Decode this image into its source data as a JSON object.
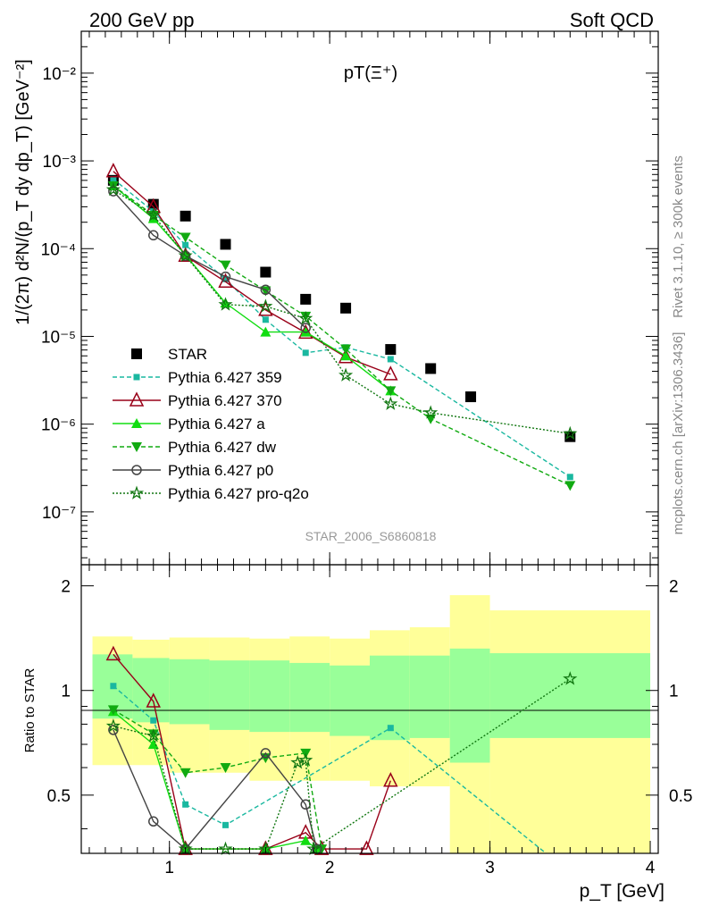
{
  "header": {
    "left": "200 GeV pp",
    "right": "Soft QCD"
  },
  "side": {
    "rivet": "Rivet 3.1.10, ≥ 300k events",
    "mcplots": "mcplots.cern.ch [arXiv:1306.3436]"
  },
  "colors": {
    "star": "#000000",
    "p359": "#1ab8a0",
    "p370": "#990018",
    "a": "#11dd11",
    "dw": "#11aa11",
    "p0": "#444444",
    "proq2o": "#117711",
    "band_inner": "#99ff99",
    "band_outer": "#ffff99"
  },
  "chart_data": [
    {
      "type": "scatter",
      "title": "pT(Ξ⁺)",
      "ylabel": "1/(2π) d²N/(p_T dy dp_T) [GeV⁻²]",
      "xlabel": "p_T [GeV]",
      "watermark": "STAR_2006_S6860818",
      "log_y": true,
      "xlim": [
        0.45,
        4.05
      ],
      "ylim": [
        2.5e-08,
        0.03
      ],
      "x_ticks": [
        "1",
        "2",
        "3",
        "4"
      ],
      "y_ticks": [
        "10⁻⁷",
        "10⁻⁶",
        "10⁻⁵",
        "10⁻⁴",
        "10⁻³",
        "10⁻²"
      ],
      "series": [
        {
          "key": "star",
          "name": "STAR",
          "marker": "square",
          "x": [
            0.65,
            0.9,
            1.1,
            1.35,
            1.6,
            1.85,
            2.1,
            2.38,
            2.63,
            2.88,
            3.5
          ],
          "y": [
            0.0006,
            0.00032,
            0.000235,
            0.000112,
            5.4e-05,
            2.65e-05,
            2.1e-05,
            7.1e-06,
            4.3e-06,
            2.05e-06,
            7.2e-07
          ]
        },
        {
          "key": "p359",
          "name": "Pythia 6.427 359",
          "marker": "smallsquare",
          "dash": "5,3",
          "x": [
            0.65,
            0.9,
            1.1,
            1.35,
            1.6,
            1.85,
            2.1,
            2.38,
            3.5
          ],
          "y": [
            0.00062,
            0.000265,
            0.00011,
            4.5e-05,
            1.55e-05,
            6.5e-06,
            7.5e-06,
            5.5e-06,
            2.5e-07
          ]
        },
        {
          "key": "p370",
          "name": "Pythia 6.427 370",
          "marker": "triangle-open",
          "dash": "",
          "x": [
            0.65,
            0.9,
            1.1,
            1.35,
            1.6,
            1.85,
            2.1,
            2.38
          ],
          "y": [
            0.00076,
            0.0003,
            8.3e-05,
            4.2e-05,
            2e-05,
            1.1e-05,
            5.8e-06,
            3.7e-06
          ]
        },
        {
          "key": "a",
          "name": "Pythia 6.427 a",
          "marker": "triangle-up",
          "dash": "",
          "x": [
            0.65,
            0.9,
            1.1,
            1.35,
            1.6,
            1.85,
            2.1,
            2.38
          ],
          "y": [
            0.00052,
            0.00022,
            8.5e-05,
            2.4e-05,
            1.12e-05,
            1.12e-05,
            6e-06,
            2.4e-06
          ]
        },
        {
          "key": "dw",
          "name": "Pythia 6.427 dw",
          "marker": "triangle-down",
          "dash": "5,3",
          "x": [
            0.65,
            0.9,
            1.1,
            1.35,
            1.6,
            1.85,
            2.1,
            2.38,
            2.63,
            3.5
          ],
          "y": [
            0.00052,
            0.00024,
            0.000135,
            6.5e-05,
            3.3e-05,
            1.7e-05,
            7.2e-06,
            2.4e-06,
            1.15e-06,
            2e-07
          ]
        },
        {
          "key": "p0",
          "name": "Pythia 6.427 p0",
          "marker": "circle-open",
          "dash": "",
          "x": [
            0.65,
            0.9,
            1.1,
            1.35,
            1.6,
            1.85
          ],
          "y": [
            0.00045,
            0.000142,
            8.3e-05,
            4.8e-05,
            3.4e-05,
            1.25e-05
          ]
        },
        {
          "key": "proq2o",
          "name": "Pythia 6.427 pro-q2o",
          "marker": "star-open",
          "dash": "2,2",
          "x": [
            0.65,
            0.9,
            1.1,
            1.35,
            1.6,
            1.85,
            2.1,
            2.38,
            2.63,
            3.5
          ],
          "y": [
            0.00047,
            0.00024,
            8.3e-05,
            2.3e-05,
            2.2e-05,
            1.6e-05,
            3.6e-06,
            1.7e-06,
            1.35e-06,
            7.8e-07
          ]
        }
      ]
    },
    {
      "type": "scatter",
      "title": "",
      "ylabel": "Ratio to STAR",
      "xlabel": "p_T [GeV]",
      "xlim": [
        0.45,
        4.05
      ],
      "ylim": [
        0.34,
        2.3
      ],
      "x_ticks": [
        "1",
        "2",
        "3",
        "4"
      ],
      "y_ticks": [
        "0.5",
        "1",
        "2"
      ],
      "bands": {
        "edges": [
          0.52,
          0.77,
          1.0,
          1.25,
          1.5,
          1.75,
          2.0,
          2.25,
          2.5,
          2.75,
          3.0,
          4.0
        ],
        "inner": [
          [
            0.83,
            1.27
          ],
          [
            0.81,
            1.24
          ],
          [
            0.8,
            1.23
          ],
          [
            0.77,
            1.22
          ],
          [
            0.76,
            1.22
          ],
          [
            0.76,
            1.2
          ],
          [
            0.74,
            1.18
          ],
          [
            0.72,
            1.26
          ],
          [
            0.73,
            1.26
          ],
          [
            0.62,
            1.32
          ],
          [
            0.73,
            1.28
          ]
        ],
        "outer": [
          [
            0.61,
            1.43
          ],
          [
            0.61,
            1.4
          ],
          [
            0.58,
            1.42
          ],
          [
            0.58,
            1.42
          ],
          [
            0.55,
            1.41
          ],
          [
            0.55,
            1.43
          ],
          [
            0.55,
            1.41
          ],
          [
            0.53,
            1.49
          ],
          [
            0.53,
            1.52
          ],
          [
            0.3,
            1.88
          ],
          [
            0.3,
            1.7
          ]
        ]
      },
      "series": [
        {
          "key": "p359",
          "x": [
            0.65,
            0.9,
            1.1,
            1.35,
            2.38,
            3.35
          ],
          "y": [
            1.03,
            0.82,
            0.47,
            0.41,
            0.78,
            0.33
          ]
        },
        {
          "key": "p370",
          "x": [
            0.65,
            0.9,
            1.1,
            1.6,
            1.85,
            1.95,
            2.23,
            2.38
          ],
          "y": [
            1.27,
            0.93,
            0.35,
            0.35,
            0.39,
            0.35,
            0.35,
            0.55
          ]
        },
        {
          "key": "a",
          "x": [
            0.65,
            0.9,
            1.1,
            1.6,
            1.85,
            1.92
          ],
          "y": [
            0.87,
            0.7,
            0.35,
            0.35,
            0.37,
            0.35
          ]
        },
        {
          "key": "dw",
          "x": [
            0.65,
            0.9,
            1.1,
            1.35,
            1.6,
            1.85,
            1.95
          ],
          "y": [
            0.88,
            0.75,
            0.58,
            0.6,
            0.64,
            0.66,
            0.35
          ]
        },
        {
          "key": "p0",
          "x": [
            0.65,
            0.9,
            1.1,
            1.6,
            1.85,
            1.92
          ],
          "y": [
            0.77,
            0.42,
            0.35,
            0.66,
            0.47,
            0.35
          ]
        },
        {
          "key": "proq2o",
          "x": [
            0.65,
            0.9,
            1.1,
            1.35,
            1.6,
            1.8,
            1.85,
            1.9,
            3.5
          ],
          "y": [
            0.79,
            0.74,
            0.35,
            0.35,
            0.35,
            0.62,
            0.63,
            0.35,
            1.08
          ]
        }
      ]
    }
  ]
}
